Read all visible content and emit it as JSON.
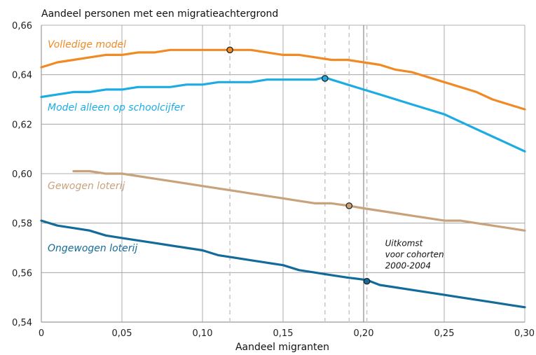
{
  "chart_data": {
    "type": "line",
    "title": "Aandeel personen met een migratieachtergrond",
    "xlabel": "Aandeel migranten",
    "ylabel": "",
    "xlim": [
      0,
      0.3
    ],
    "ylim": [
      0.54,
      0.66
    ],
    "x_ticks": [
      0,
      0.05,
      0.1,
      0.15,
      0.2,
      0.25,
      0.3
    ],
    "x_tick_labels": [
      "0",
      "0,05",
      "0,10",
      "0,15",
      "0,20",
      "0,25",
      "0,30"
    ],
    "y_ticks": [
      0.54,
      0.56,
      0.58,
      0.6,
      0.62,
      0.64,
      0.66
    ],
    "y_tick_labels": [
      "0,54",
      "0,56",
      "0,58",
      "0,60",
      "0,62",
      "0,64",
      "0,66"
    ],
    "grid": true,
    "legend": "none",
    "colors": {
      "grid": "#999999",
      "axis": "#555555",
      "marker_ref_line": "#c9c9c9",
      "highlight_ref_line": "#9a9a9a",
      "marker_outline": "#222222"
    },
    "series": [
      {
        "name": "Volledige model",
        "color": "#f08a24",
        "x": [
          0,
          0.01,
          0.02,
          0.03,
          0.04,
          0.05,
          0.06,
          0.07,
          0.08,
          0.09,
          0.1,
          0.11,
          0.117,
          0.13,
          0.14,
          0.15,
          0.16,
          0.17,
          0.18,
          0.19,
          0.2,
          0.21,
          0.22,
          0.23,
          0.24,
          0.25,
          0.26,
          0.27,
          0.28,
          0.29,
          0.3
        ],
        "values": [
          0.643,
          0.645,
          0.646,
          0.647,
          0.648,
          0.648,
          0.649,
          0.649,
          0.65,
          0.65,
          0.65,
          0.65,
          0.65,
          0.65,
          0.649,
          0.648,
          0.648,
          0.647,
          0.646,
          0.646,
          0.645,
          0.644,
          0.642,
          0.641,
          0.639,
          0.637,
          0.635,
          0.633,
          0.63,
          0.628,
          0.626
        ],
        "marker": {
          "x": 0.117,
          "y": 0.65
        }
      },
      {
        "name": "Model alleen op schoolcijfer",
        "color": "#1cace3",
        "x": [
          0,
          0.01,
          0.02,
          0.03,
          0.04,
          0.05,
          0.06,
          0.07,
          0.08,
          0.09,
          0.1,
          0.11,
          0.12,
          0.13,
          0.14,
          0.15,
          0.16,
          0.17,
          0.176,
          0.18,
          0.19,
          0.2,
          0.21,
          0.22,
          0.23,
          0.24,
          0.25,
          0.26,
          0.27,
          0.28,
          0.29,
          0.3
        ],
        "values": [
          0.631,
          0.632,
          0.633,
          0.633,
          0.634,
          0.634,
          0.635,
          0.635,
          0.635,
          0.636,
          0.636,
          0.637,
          0.637,
          0.637,
          0.638,
          0.638,
          0.638,
          0.638,
          0.639,
          0.638,
          0.636,
          0.634,
          0.632,
          0.63,
          0.628,
          0.626,
          0.624,
          0.621,
          0.618,
          0.615,
          0.612,
          0.609
        ],
        "marker": {
          "x": 0.176,
          "y": 0.6385
        }
      },
      {
        "name": "Gewogen loterij",
        "color": "#c8a27b",
        "x": [
          0.02,
          0.03,
          0.04,
          0.05,
          0.06,
          0.07,
          0.08,
          0.09,
          0.1,
          0.11,
          0.12,
          0.13,
          0.14,
          0.15,
          0.16,
          0.17,
          0.18,
          0.191,
          0.2,
          0.21,
          0.22,
          0.23,
          0.24,
          0.25,
          0.26,
          0.27,
          0.28,
          0.29,
          0.3
        ],
        "values": [
          0.601,
          0.601,
          0.6,
          0.6,
          0.599,
          0.598,
          0.597,
          0.596,
          0.595,
          0.594,
          0.593,
          0.592,
          0.591,
          0.59,
          0.589,
          0.588,
          0.588,
          0.587,
          0.586,
          0.585,
          0.584,
          0.583,
          0.582,
          0.581,
          0.581,
          0.58,
          0.579,
          0.578,
          0.577
        ],
        "marker": {
          "x": 0.191,
          "y": 0.587
        }
      },
      {
        "name": "Ongewogen loterij",
        "color": "#136b99",
        "x": [
          0,
          0.01,
          0.02,
          0.03,
          0.04,
          0.05,
          0.06,
          0.07,
          0.08,
          0.09,
          0.1,
          0.11,
          0.12,
          0.13,
          0.14,
          0.15,
          0.16,
          0.17,
          0.18,
          0.19,
          0.202,
          0.21,
          0.22,
          0.23,
          0.24,
          0.25,
          0.26,
          0.27,
          0.28,
          0.29,
          0.3
        ],
        "values": [
          0.581,
          0.579,
          0.578,
          0.577,
          0.575,
          0.574,
          0.573,
          0.572,
          0.571,
          0.57,
          0.569,
          0.567,
          0.566,
          0.565,
          0.564,
          0.563,
          0.561,
          0.56,
          0.559,
          0.558,
          0.557,
          0.555,
          0.554,
          0.553,
          0.552,
          0.551,
          0.55,
          0.549,
          0.548,
          0.547,
          0.546
        ],
        "marker": {
          "x": 0.202,
          "y": 0.5565
        }
      }
    ],
    "reference_lines": {
      "dashed_x": [
        0.117,
        0.176,
        0.191,
        0.202
      ],
      "highlight_x": 0.2
    },
    "annotations": [
      {
        "lines": [
          "Uitkomst",
          "voor cohorten",
          "2000-2004"
        ],
        "x": 0.202,
        "y": 0.5565
      }
    ]
  }
}
